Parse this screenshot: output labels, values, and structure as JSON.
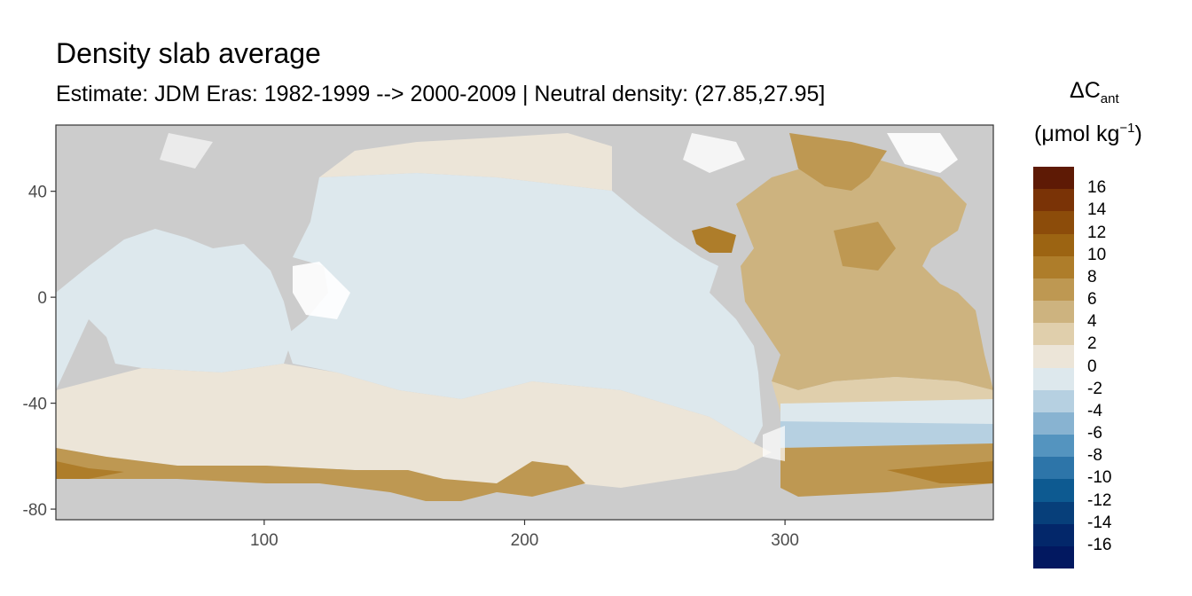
{
  "title": "Density slab average",
  "subtitle": "Estimate: JDM Eras: 1982-1999 --> 2000-2009 | Neutral density: (27.85,27.95]",
  "legend": {
    "title_main": "ΔC",
    "title_sub": "ant",
    "unit_prefix": "(μmol kg",
    "unit_sup": "−1",
    "unit_suffix": ")",
    "labels": [
      "16",
      "14",
      "12",
      "10",
      "8",
      "6",
      "4",
      "2",
      "0",
      "-2",
      "-4",
      "-6",
      "-8",
      "-10",
      "-12",
      "-14",
      "-16"
    ],
    "colors": [
      "#5e1a05",
      "#7a3306",
      "#8c4c0a",
      "#9c6412",
      "#ae7d2a",
      "#be9852",
      "#cdb37f",
      "#e0cfac",
      "#ece5d8",
      "#dde8ed",
      "#b6d0e1",
      "#88b3d1",
      "#5494bf",
      "#2d75a9",
      "#0d5a91",
      "#073f7a",
      "#03276a",
      "#021860"
    ]
  },
  "map": {
    "type": "heatmap",
    "x_ticks": [
      "100",
      "200",
      "300"
    ],
    "y_ticks": [
      "40",
      "0",
      "-40",
      "-80"
    ],
    "x_tick_values": [
      100,
      200,
      300
    ],
    "y_tick_values": [
      40,
      0,
      -40,
      -80
    ],
    "xlim": [
      20,
      380
    ],
    "ylim": [
      -84,
      65
    ],
    "land_color": "#cccccc",
    "no_data_color": "#ffffff",
    "panel_border": "#333333"
  }
}
